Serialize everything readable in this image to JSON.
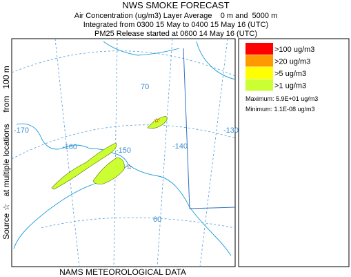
{
  "header": {
    "title": "NWS SMOKE FORECAST",
    "lines": [
      "Air Concentration (ug/m3) Layer Average    0 m and  5000 m",
      "Integrated from 0300 15 May to 0400 15 May 16 (UTC)",
      "PM25 Release started at 0600 14 May 16 (UTC)"
    ]
  },
  "side_label": "Source ☆   at multiple locations     from   100 m",
  "footer": "NAMS METEOROLOGICAL DATA",
  "legend": {
    "items": [
      {
        "label": ">100 ug/m3",
        "color": "#ff0000"
      },
      {
        "label": ">20 ug/m3",
        "color": "#ff9900"
      },
      {
        "label": ">5 ug/m3",
        "color": "#ffff00"
      },
      {
        "label": ">1 ug/m3",
        "color": "#ccff33"
      }
    ],
    "maximum": "Maximum: 5.9E+01 ug/m3",
    "minimum": "Minimum: 1.1E-08 ug/m3"
  },
  "map_labels": [
    "70",
    "-170",
    "-160",
    "-150",
    "-140",
    "-130",
    "60"
  ]
}
